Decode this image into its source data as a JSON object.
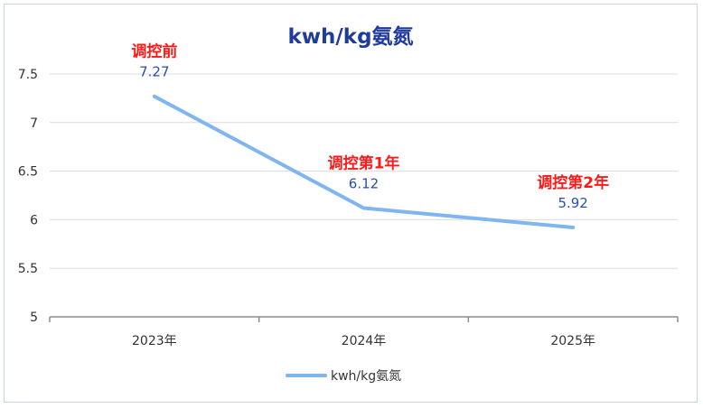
{
  "chart_data": {
    "type": "line",
    "title": "kwh/kg氨氮",
    "categories": [
      "2023年",
      "2024年",
      "2025年"
    ],
    "series": [
      {
        "name": "kwh/kg氨氮",
        "values": [
          7.27,
          6.12,
          5.92
        ],
        "color": "#7fb5f0"
      }
    ],
    "data_labels": [
      "7.27",
      "6.12",
      "5.92"
    ],
    "annotations": [
      "调控前",
      "调控第1年",
      "调控第2年"
    ],
    "annotation_color": "#ff1a1a",
    "ylim": [
      5,
      7.5
    ],
    "yticks": [
      5,
      5.5,
      6,
      6.5,
      7,
      7.5
    ],
    "ytick_labels": [
      "5",
      "5.5",
      "6",
      "6.5",
      "7",
      "7.5"
    ],
    "grid": true,
    "legend_position": "bottom",
    "xlabel": "",
    "ylabel": ""
  }
}
